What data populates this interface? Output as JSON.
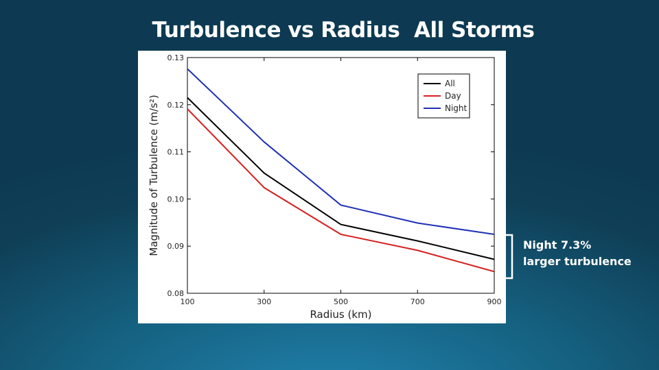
{
  "slide": {
    "title": "Turbulence vs Radius  All Storms",
    "annotation": {
      "line1": "Night 7.3%",
      "line2": "larger turbulence"
    },
    "colors": {
      "text": "#ffffff",
      "background_dark": "#0d3a52",
      "background_light": "#2184b0"
    }
  },
  "chart_data": {
    "type": "line",
    "title": "",
    "xlabel": "Radius (km)",
    "ylabel": "Magnitude of Turbulence (m/s²)",
    "x": [
      100,
      300,
      500,
      700,
      900
    ],
    "xlim": [
      100,
      900
    ],
    "ylim": [
      0.08,
      0.13
    ],
    "x_ticks": [
      100,
      300,
      500,
      700,
      900
    ],
    "y_ticks": [
      0.08,
      0.09,
      0.1,
      0.11,
      0.12,
      0.13
    ],
    "x_tick_labels": [
      "100",
      "300",
      "500",
      "700",
      "900"
    ],
    "y_tick_labels": [
      "0.08",
      "0.09",
      "0.10",
      "0.11",
      "0.12",
      "0.13"
    ],
    "grid": false,
    "legend_position": "top-right",
    "series": [
      {
        "name": "All",
        "color": "#000000",
        "values": [
          0.1215,
          0.1055,
          0.0946,
          0.0911,
          0.0872
        ]
      },
      {
        "name": "Day",
        "color": "#d62020",
        "values": [
          0.1191,
          0.1024,
          0.0925,
          0.0891,
          0.0846
        ]
      },
      {
        "name": "Night",
        "color": "#1f2fb4",
        "values": [
          0.1276,
          0.1121,
          0.0987,
          0.0949,
          0.0925
        ]
      }
    ]
  }
}
